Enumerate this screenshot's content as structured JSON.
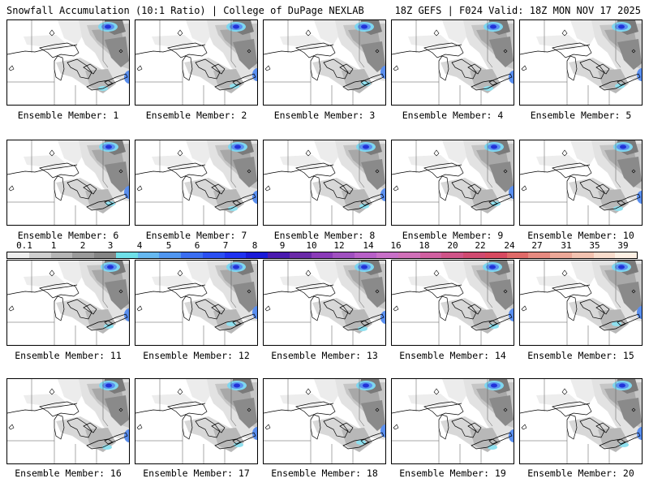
{
  "header": {
    "title_left": "Snowfall Accumulation (10:1 Ratio) | College of DuPage NEXLAB",
    "title_right": "18Z GEFS | F024 Valid: 18Z MON NOV 17 2025"
  },
  "colorbar": {
    "labels": [
      "0.1",
      "1",
      "2",
      "3",
      "4",
      "5",
      "6",
      "7",
      "8",
      "9",
      "10",
      "12",
      "14",
      "16",
      "18",
      "20",
      "22",
      "24",
      "27",
      "31",
      "35",
      "39"
    ],
    "colors": [
      "#eeeeee",
      "#cfcfcf",
      "#b5b5b5",
      "#9a9a9a",
      "#858585",
      "#6fe0e8",
      "#66b8f0",
      "#5096f0",
      "#3a6ef2",
      "#2a4ff2",
      "#1f32f0",
      "#1a1ad8",
      "#4a1ab0",
      "#6a2aa8",
      "#8a3ab8",
      "#a050c0",
      "#b860c8",
      "#c870c8",
      "#d070b8",
      "#d060a0",
      "#d05488",
      "#d04a70",
      "#d84a60",
      "#e06a68",
      "#e68a80",
      "#eca898",
      "#f2c2b0",
      "#f8dccc",
      "#fdf0e4"
    ]
  },
  "members": [
    {
      "label": "Ensemble Member: 1"
    },
    {
      "label": "Ensemble Member: 2"
    },
    {
      "label": "Ensemble Member: 3"
    },
    {
      "label": "Ensemble Member: 4"
    },
    {
      "label": "Ensemble Member: 5"
    },
    {
      "label": "Ensemble Member: 6"
    },
    {
      "label": "Ensemble Member: 7"
    },
    {
      "label": "Ensemble Member: 8"
    },
    {
      "label": "Ensemble Member: 9"
    },
    {
      "label": "Ensemble Member: 10"
    },
    {
      "label": "Ensemble Member: 11"
    },
    {
      "label": "Ensemble Member: 12"
    },
    {
      "label": "Ensemble Member: 13"
    },
    {
      "label": "Ensemble Member: 14"
    },
    {
      "label": "Ensemble Member: 15"
    },
    {
      "label": "Ensemble Member: 16"
    },
    {
      "label": "Ensemble Member: 17"
    },
    {
      "label": "Ensemble Member: 18"
    },
    {
      "label": "Ensemble Member: 19"
    },
    {
      "label": "Ensemble Member: 20"
    }
  ]
}
